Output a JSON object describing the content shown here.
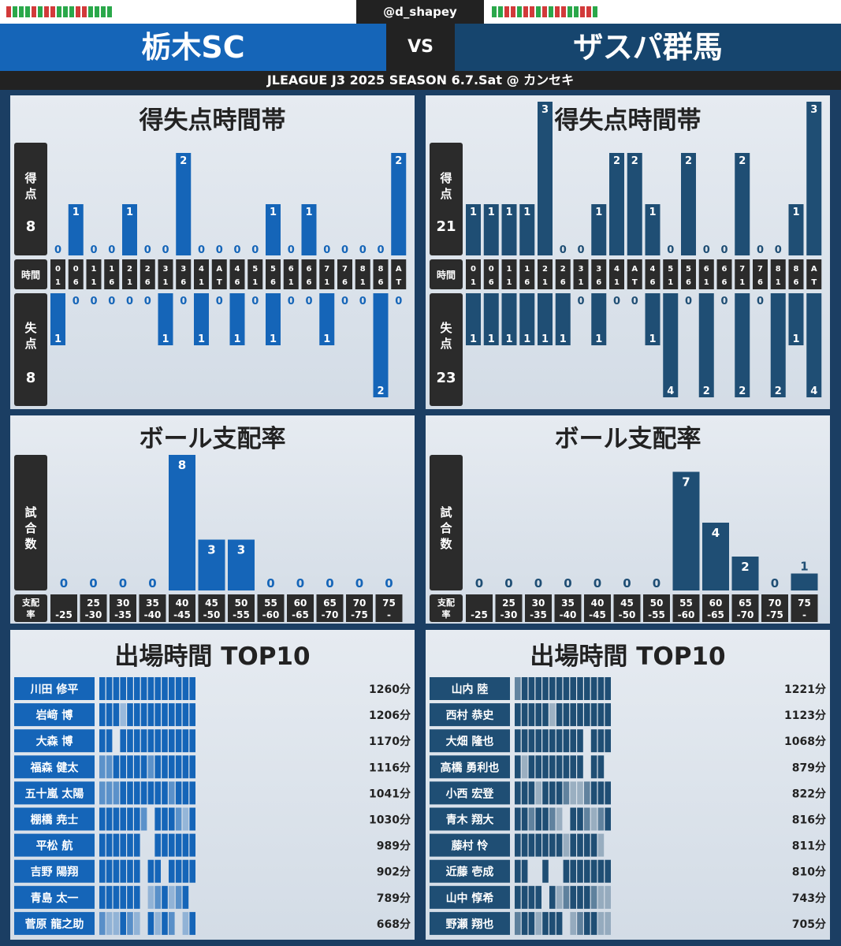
{
  "header": {
    "handle": "@d_shapey",
    "team_left": "栃木SC",
    "team_right": "ザスパ群馬",
    "vs": "VS",
    "subtitle": "JLEAGUE J3 2025 SEASON 6.7.Sat @ カンセキ",
    "form_left": [
      "r",
      "g",
      "g",
      "g",
      "r",
      "g",
      "r",
      "r",
      "g",
      "g",
      "g",
      "r",
      "r",
      "g",
      "g",
      "g",
      "g"
    ],
    "form_right": [
      "g",
      "g",
      "r",
      "r",
      "g",
      "r",
      "r",
      "g",
      "r",
      "g",
      "r",
      "r",
      "g",
      "g",
      "r",
      "r",
      "g"
    ]
  },
  "colors": {
    "left_bar": "#1565b8",
    "right_bar": "#1f4e74",
    "dark": "#2b2b2b",
    "win": "#2aa84a",
    "loss": "#d23a3a"
  },
  "labels": {
    "goals_title": "得失点時間帯",
    "scored": "得点",
    "time": "時間",
    "conceded": "失点",
    "poss_title": "ボール支配率",
    "matches": "試合数",
    "poss_label": "支配率",
    "minutes_title": "出場時間 TOP10"
  },
  "chart_data": [
    {
      "type": "bar",
      "team": "栃木SC",
      "title": "得失点時間帯",
      "categories": [
        "0-1",
        "6",
        "11",
        "16",
        "21",
        "26",
        "31",
        "36",
        "41",
        "AT",
        "46",
        "51",
        "56",
        "61",
        "66",
        "71",
        "76",
        "81",
        "86",
        "AT"
      ],
      "tick_labels": [
        [
          "0",
          "1"
        ],
        [
          "0",
          "6"
        ],
        [
          "1",
          "1"
        ],
        [
          "1",
          "6"
        ],
        [
          "2",
          "1"
        ],
        [
          "2",
          "6"
        ],
        [
          "3",
          "1"
        ],
        [
          "3",
          "6"
        ],
        [
          "4",
          "1"
        ],
        [
          "A",
          "T"
        ],
        [
          "4",
          "6"
        ],
        [
          "5",
          "1"
        ],
        [
          "5",
          "6"
        ],
        [
          "6",
          "1"
        ],
        [
          "6",
          "6"
        ],
        [
          "7",
          "1"
        ],
        [
          "7",
          "6"
        ],
        [
          "8",
          "1"
        ],
        [
          "8",
          "6"
        ],
        [
          "A",
          "T"
        ]
      ],
      "scored_total": "8",
      "conceded_total": "8",
      "scored": [
        0,
        1,
        0,
        0,
        1,
        0,
        0,
        2,
        0,
        0,
        0,
        0,
        1,
        0,
        1,
        0,
        0,
        0,
        0,
        2
      ],
      "conceded": [
        1,
        0,
        0,
        0,
        0,
        0,
        1,
        0,
        1,
        0,
        1,
        0,
        1,
        0,
        0,
        1,
        0,
        0,
        2,
        0
      ]
    },
    {
      "type": "bar",
      "team": "ザスパ群馬",
      "title": "得失点時間帯",
      "categories": [
        "0-1",
        "6",
        "11",
        "16",
        "21",
        "26",
        "31",
        "36",
        "41",
        "AT",
        "46",
        "51",
        "56",
        "61",
        "66",
        "71",
        "76",
        "81",
        "86",
        "AT"
      ],
      "tick_labels": [
        [
          "0",
          "1"
        ],
        [
          "0",
          "6"
        ],
        [
          "1",
          "1"
        ],
        [
          "1",
          "6"
        ],
        [
          "2",
          "1"
        ],
        [
          "2",
          "6"
        ],
        [
          "3",
          "1"
        ],
        [
          "3",
          "6"
        ],
        [
          "4",
          "1"
        ],
        [
          "A",
          "T"
        ],
        [
          "4",
          "6"
        ],
        [
          "5",
          "1"
        ],
        [
          "5",
          "6"
        ],
        [
          "6",
          "1"
        ],
        [
          "6",
          "6"
        ],
        [
          "7",
          "1"
        ],
        [
          "7",
          "6"
        ],
        [
          "8",
          "1"
        ],
        [
          "8",
          "6"
        ],
        [
          "A",
          "T"
        ]
      ],
      "scored_total": "21",
      "conceded_total": "23",
      "scored": [
        1,
        1,
        1,
        1,
        3,
        0,
        0,
        1,
        2,
        2,
        1,
        0,
        2,
        0,
        0,
        2,
        0,
        0,
        1,
        3
      ],
      "conceded": [
        1,
        1,
        1,
        1,
        1,
        1,
        0,
        1,
        0,
        0,
        1,
        4,
        0,
        2,
        0,
        2,
        0,
        2,
        1,
        4
      ]
    },
    {
      "type": "bar",
      "team": "栃木SC",
      "title": "ボール支配率",
      "categories": [
        [
          "",
          "-25"
        ],
        [
          "25",
          "-30"
        ],
        [
          "30",
          "-35"
        ],
        [
          "35",
          "-40"
        ],
        [
          "40",
          "-45"
        ],
        [
          "45",
          "-50"
        ],
        [
          "50",
          "-55"
        ],
        [
          "55",
          "-60"
        ],
        [
          "60",
          "-65"
        ],
        [
          "65",
          "-70"
        ],
        [
          "70",
          "-75"
        ],
        [
          "75",
          "-"
        ]
      ],
      "values": [
        0,
        0,
        0,
        0,
        8,
        3,
        3,
        0,
        0,
        0,
        0,
        0
      ]
    },
    {
      "type": "bar",
      "team": "ザスパ群馬",
      "title": "ボール支配率",
      "categories": [
        [
          "",
          "-25"
        ],
        [
          "25",
          "-30"
        ],
        [
          "30",
          "-35"
        ],
        [
          "35",
          "-40"
        ],
        [
          "40",
          "-45"
        ],
        [
          "45",
          "-50"
        ],
        [
          "50",
          "-55"
        ],
        [
          "55",
          "-60"
        ],
        [
          "60",
          "-65"
        ],
        [
          "65",
          "-70"
        ],
        [
          "70",
          "-75"
        ],
        [
          "75",
          "-"
        ]
      ],
      "values": [
        0,
        0,
        0,
        0,
        0,
        0,
        0,
        7,
        4,
        2,
        0,
        1
      ]
    },
    {
      "type": "table",
      "team": "栃木SC",
      "title": "出場時間 TOP10",
      "players": [
        {
          "name": "川田 修平",
          "minutes": "1260分",
          "matches": [
            3,
            3,
            3,
            3,
            3,
            3,
            3,
            3,
            3,
            3,
            3,
            3,
            3,
            3
          ]
        },
        {
          "name": "岩﨑 博",
          "minutes": "1206分",
          "matches": [
            3,
            3,
            3,
            1,
            3,
            3,
            3,
            3,
            3,
            3,
            3,
            3,
            3,
            3
          ]
        },
        {
          "name": "大森 博",
          "minutes": "1170分",
          "matches": [
            3,
            3,
            0,
            3,
            3,
            3,
            3,
            3,
            3,
            3,
            3,
            3,
            3,
            3
          ]
        },
        {
          "name": "福森 健太",
          "minutes": "1116分",
          "matches": [
            2,
            2,
            3,
            3,
            3,
            3,
            3,
            2,
            3,
            3,
            3,
            3,
            3,
            3
          ]
        },
        {
          "name": "五十嵐 太陽",
          "minutes": "1041分",
          "matches": [
            2,
            2,
            2,
            3,
            3,
            3,
            3,
            3,
            3,
            3,
            2,
            3,
            3,
            3
          ]
        },
        {
          "name": "棚橋 尭士",
          "minutes": "1030分",
          "matches": [
            3,
            3,
            3,
            3,
            3,
            3,
            2,
            0,
            3,
            3,
            3,
            2,
            1,
            3
          ]
        },
        {
          "name": "平松 航",
          "minutes": "989分",
          "matches": [
            3,
            3,
            3,
            3,
            3,
            3,
            0,
            0,
            3,
            3,
            3,
            3,
            3,
            3
          ]
        },
        {
          "name": "吉野 陽翔",
          "minutes": "902分",
          "matches": [
            3,
            3,
            3,
            3,
            3,
            3,
            0,
            3,
            3,
            0,
            3,
            3,
            3,
            3
          ]
        },
        {
          "name": "青島 太一",
          "minutes": "789分",
          "matches": [
            3,
            3,
            3,
            3,
            3,
            3,
            0,
            1,
            2,
            3,
            1,
            2,
            3,
            0
          ]
        },
        {
          "name": "菅原 龍之助",
          "minutes": "668分",
          "matches": [
            2,
            1,
            1,
            3,
            2,
            1,
            0,
            3,
            1,
            3,
            2,
            0,
            1,
            3
          ]
        }
      ]
    },
    {
      "type": "table",
      "team": "ザスパ群馬",
      "title": "出場時間 TOP10",
      "players": [
        {
          "name": "山内 陸",
          "minutes": "1221分",
          "matches": [
            2,
            3,
            3,
            3,
            3,
            3,
            3,
            3,
            3,
            3,
            3,
            3,
            3,
            3
          ]
        },
        {
          "name": "西村 恭史",
          "minutes": "1123分",
          "matches": [
            3,
            3,
            3,
            3,
            3,
            1,
            3,
            3,
            3,
            3,
            3,
            3,
            3,
            3
          ]
        },
        {
          "name": "大畑 隆也",
          "minutes": "1068分",
          "matches": [
            3,
            3,
            3,
            3,
            3,
            3,
            3,
            3,
            3,
            3,
            0,
            3,
            3,
            3
          ]
        },
        {
          "name": "高橋 勇利也",
          "minutes": "879分",
          "matches": [
            3,
            1,
            3,
            3,
            3,
            3,
            3,
            3,
            3,
            3,
            0,
            3,
            3,
            0
          ]
        },
        {
          "name": "小西 宏登",
          "minutes": "822分",
          "matches": [
            3,
            3,
            3,
            1,
            3,
            3,
            3,
            2,
            1,
            1,
            2,
            3,
            3,
            3
          ]
        },
        {
          "name": "青木 翔大",
          "minutes": "816分",
          "matches": [
            3,
            3,
            2,
            3,
            3,
            2,
            1,
            0,
            3,
            3,
            2,
            1,
            2,
            3
          ]
        },
        {
          "name": "藤村 怜",
          "minutes": "811分",
          "matches": [
            3,
            3,
            3,
            3,
            3,
            3,
            3,
            1,
            3,
            3,
            3,
            3,
            1,
            0
          ]
        },
        {
          "name": "近藤 壱成",
          "minutes": "810分",
          "matches": [
            3,
            3,
            0,
            0,
            3,
            0,
            0,
            3,
            3,
            3,
            3,
            3,
            3,
            3
          ]
        },
        {
          "name": "山中 惇希",
          "minutes": "743分",
          "matches": [
            3,
            3,
            3,
            3,
            0,
            3,
            1,
            2,
            3,
            3,
            3,
            2,
            1,
            1
          ]
        },
        {
          "name": "野瀬 翔也",
          "minutes": "705分",
          "matches": [
            2,
            3,
            3,
            1,
            3,
            3,
            3,
            0,
            1,
            2,
            3,
            3,
            1,
            1
          ]
        }
      ]
    }
  ]
}
